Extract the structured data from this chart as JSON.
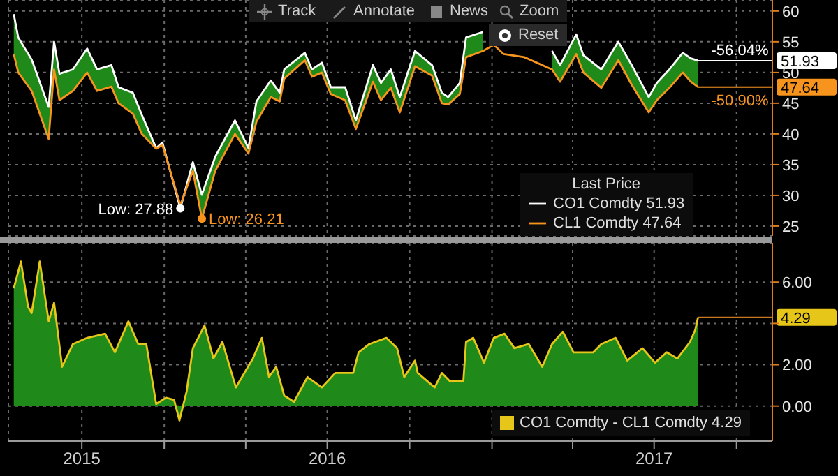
{
  "chart_data": [
    {
      "type": "line",
      "legend_title": "Last Price",
      "legend": "bottom right",
      "grid": true,
      "tick_labels": "y",
      "x": [
        "2015-07-17",
        "2015-07-22",
        "2015-08-06",
        "2015-08-25",
        "2015-08-31",
        "2015-09-06",
        "2015-09-21",
        "2015-10-07",
        "2015-10-18",
        "2015-11-03",
        "2015-11-11",
        "2015-11-27",
        "2015-12-07",
        "2015-12-23",
        "2015-12-30",
        "2016-01-19",
        "2016-02-02",
        "2016-02-12",
        "2016-02-27",
        "2016-03-20",
        "2016-04-04",
        "2016-04-13",
        "2016-04-29",
        "2016-05-09",
        "2016-05-14",
        "2016-06-06",
        "2016-06-14",
        "2016-06-25",
        "2016-07-05",
        "2016-07-21",
        "2016-08-02",
        "2016-08-21",
        "2016-08-30",
        "2016-09-10",
        "2016-09-20",
        "2016-10-07",
        "2016-10-26",
        "2016-11-06",
        "2016-11-13",
        "2016-11-26",
        "2016-12-03",
        "2016-12-22",
        "2017-01-03",
        "2017-01-14",
        "2017-02-06",
        "2017-03-09",
        "2017-03-18",
        "2017-04-05",
        "2017-04-13",
        "2017-05-03",
        "2017-05-22",
        "2017-06-06",
        "2017-06-25",
        "2017-07-04",
        "2017-07-18",
        "2017-08-02",
        "2017-08-11",
        "2017-08-19"
      ],
      "series": [
        {
          "name": "CO1 Comdty 51.93",
          "color": "#ffffff",
          "values": [
            59.5,
            55.7,
            52.1,
            44.4,
            55.0,
            49.8,
            50.5,
            53.9,
            50.5,
            51.2,
            47.6,
            46.7,
            43.1,
            37.7,
            38.6,
            27.88,
            35.4,
            30.1,
            36.3,
            42.2,
            37.7,
            45.3,
            48.7,
            46.7,
            50.5,
            53.2,
            50.5,
            51.6,
            47.6,
            47.6,
            42.2,
            51.2,
            48.3,
            50.5,
            46.0,
            53.5,
            51.2,
            46.7,
            46.0,
            48.3,
            55.7,
            56.6,
            null,
            null,
            null,
            53.5,
            51.2,
            56.2,
            52.8,
            50.5,
            55.0,
            51.2,
            46.0,
            48.3,
            50.5,
            53.2,
            52.3,
            51.93
          ],
          "lower": [
            53.0,
            50.0,
            47.0,
            39.2,
            50.5,
            45.5,
            47.0,
            50.0,
            47.0,
            47.7,
            45.0,
            43.3,
            40.0,
            37.6,
            38.2,
            28.4,
            34.0,
            26.21,
            34.0,
            40.0,
            36.8,
            42.0,
            46.0,
            45.3,
            49.0,
            52.0,
            49.3,
            50.0,
            46.5,
            45.5,
            40.8,
            48.5,
            45.5,
            47.5,
            43.5,
            51.0,
            49.5,
            45.0,
            44.8,
            46.5,
            52.5,
            53.5,
            null,
            null,
            null,
            50.5,
            48.5,
            53.0,
            50.0,
            47.5,
            52.0,
            48.0,
            43.5,
            45.5,
            47.5,
            50.0,
            48.5,
            47.64
          ],
          "upper": [
            59.5,
            55.7,
            52.1,
            44.4,
            55.0,
            49.8,
            50.5,
            53.9,
            50.5,
            51.2,
            47.6,
            46.7,
            43.1,
            37.7,
            38.6,
            27.88,
            35.4,
            30.1,
            36.3,
            42.2,
            37.7,
            45.3,
            48.7,
            46.7,
            50.5,
            53.2,
            50.5,
            51.6,
            47.6,
            47.6,
            42.2,
            51.2,
            48.3,
            50.5,
            46.0,
            53.5,
            51.2,
            46.7,
            46.0,
            48.3,
            55.7,
            56.6,
            null,
            null,
            null,
            53.5,
            51.2,
            56.2,
            52.8,
            50.5,
            55.0,
            51.2,
            46.0,
            48.3,
            50.5,
            53.2,
            52.3,
            51.93
          ],
          "line_style": "solid"
        },
        {
          "name": "CL1 Comdty 47.64",
          "color": "#f7941d",
          "values": [
            53.0,
            50.0,
            47.0,
            39.2,
            50.5,
            45.5,
            47.0,
            50.0,
            47.0,
            47.7,
            45.0,
            43.3,
            40.0,
            37.6,
            38.2,
            28.4,
            34.0,
            26.21,
            34.0,
            40.0,
            36.8,
            42.0,
            46.0,
            45.3,
            49.0,
            52.0,
            49.3,
            50.0,
            46.5,
            45.5,
            40.8,
            48.5,
            45.5,
            47.5,
            43.5,
            51.0,
            49.5,
            45.0,
            44.8,
            46.5,
            52.5,
            53.5,
            54.5,
            53.0,
            52.5,
            50.5,
            48.5,
            53.0,
            50.0,
            47.5,
            52.0,
            48.0,
            43.5,
            45.5,
            47.5,
            50.0,
            48.5,
            47.64
          ]
        }
      ],
      "xlim": [
        "2015-07-11",
        "2017-11-10"
      ],
      "xticks": [
        {
          "value": "2015-10-01",
          "label": null
        },
        {
          "value": "2016-01-01",
          "label": null
        },
        {
          "value": "2016-04-01",
          "label": null
        },
        {
          "value": "2016-07-01",
          "label": null
        },
        {
          "value": "2016-10-01",
          "label": null
        },
        {
          "value": "2017-01-01",
          "label": null
        },
        {
          "value": "2017-04-01",
          "label": null
        },
        {
          "value": "2017-07-01",
          "label": null
        },
        {
          "value": "2017-10-01",
          "label": null
        }
      ],
      "ylim": [
        23.4,
        61.8
      ],
      "yticks": [
        25,
        30,
        35,
        40,
        45,
        50,
        55,
        60
      ],
      "ref_lines": [
        {
          "axis": "y",
          "value": 51.93,
          "label": "51.93",
          "color": "#ffffff"
        },
        {
          "axis": "y",
          "value": 47.64,
          "label": "47.64",
          "color": "#f7941d"
        }
      ],
      "annotations": [
        "Track",
        "Annotate",
        "News",
        "Zoom",
        "Reset",
        {
          "text": "Low: 27.88",
          "x": "2016-01-19",
          "y": 27.88
        },
        {
          "text": "Low: 26.21",
          "x": "2016-02-12",
          "y": 26.21
        },
        {
          "text": "-56.04%",
          "x": "2017-10-11",
          "y": 51.93
        },
        {
          "text": "-50.90%",
          "x": "2017-10-11",
          "y": 47.64
        }
      ]
    },
    {
      "type": "area",
      "legend": "bottom right",
      "grid": true,
      "x": [
        "2015-07-17",
        "2015-07-25",
        "2015-08-02",
        "2015-08-06",
        "2015-08-15",
        "2015-08-25",
        "2015-08-31",
        "2015-09-09",
        "2015-09-21",
        "2015-10-07",
        "2015-10-27",
        "2015-11-07",
        "2015-11-22",
        "2015-12-03",
        "2015-12-12",
        "2015-12-23",
        "2016-01-03",
        "2016-01-12",
        "2016-01-18",
        "2016-01-26",
        "2016-02-02",
        "2016-02-15",
        "2016-02-25",
        "2016-03-06",
        "2016-03-21",
        "2016-04-09",
        "2016-04-19",
        "2016-04-27",
        "2016-05-05",
        "2016-05-14",
        "2016-05-25",
        "2016-06-09",
        "2016-06-25",
        "2016-07-10",
        "2016-07-30",
        "2016-08-05",
        "2016-08-17",
        "2016-09-05",
        "2016-09-17",
        "2016-09-25",
        "2016-10-07",
        "2016-10-10",
        "2016-10-29",
        "2016-11-06",
        "2016-11-15",
        "2016-11-30",
        "2016-12-03",
        "2016-12-11",
        "2016-12-23",
        "2017-01-03",
        "2017-01-15",
        "2017-01-26",
        "2017-02-11",
        "2017-02-26",
        "2017-03-09",
        "2017-03-21",
        "2017-04-02",
        "2017-04-24",
        "2017-05-03",
        "2017-05-19",
        "2017-06-01",
        "2017-06-18",
        "2017-07-02",
        "2017-07-15",
        "2017-07-27",
        "2017-08-10",
        "2017-08-16",
        "2017-08-19"
      ],
      "series": [
        {
          "name": "CO1 Comdty - CL1 Comdty 4.29",
          "color": "#e6c619",
          "values": [
            5.7,
            7.0,
            4.8,
            4.5,
            7.0,
            4.1,
            5.0,
            1.9,
            3.0,
            3.3,
            3.5,
            2.6,
            4.1,
            3.0,
            3.0,
            0.1,
            0.4,
            0.3,
            -0.7,
            0.7,
            2.8,
            3.9,
            2.3,
            3.1,
            0.9,
            2.3,
            3.3,
            1.4,
            1.9,
            0.5,
            0.2,
            1.4,
            0.9,
            1.6,
            1.6,
            2.6,
            3.0,
            3.3,
            2.8,
            1.4,
            2.2,
            1.6,
            0.9,
            1.6,
            1.2,
            1.2,
            3.1,
            3.3,
            2.1,
            3.3,
            3.5,
            2.8,
            3.0,
            1.9,
            3.0,
            3.6,
            2.6,
            2.6,
            3.0,
            3.3,
            2.2,
            2.8,
            2.1,
            2.6,
            2.3,
            3.1,
            3.7,
            4.29
          ]
        }
      ],
      "xlim": [
        "2015-07-11",
        "2017-11-10"
      ],
      "xticks": [
        {
          "value": "2015-10-01",
          "label": "2015"
        },
        {
          "value": "2016-01-01",
          "label": null
        },
        {
          "value": "2016-04-01",
          "label": null
        },
        {
          "value": "2016-07-01",
          "label": "2016"
        },
        {
          "value": "2016-10-01",
          "label": null
        },
        {
          "value": "2017-01-01",
          "label": null
        },
        {
          "value": "2017-04-01",
          "label": null
        },
        {
          "value": "2017-07-01",
          "label": "2017"
        },
        {
          "value": "2017-10-01",
          "label": null
        }
      ],
      "ylim": [
        -1.7,
        7.9
      ],
      "yticks": [
        {
          "value": 0,
          "label": "0.00"
        },
        {
          "value": 2,
          "label": "2.00"
        },
        {
          "value": 4,
          "label": null
        },
        {
          "value": 6,
          "label": "6.00"
        }
      ],
      "ref_lines": [
        {
          "axis": "y",
          "value": 4.29,
          "label": "4.29",
          "color": "#c8781e"
        }
      ]
    }
  ]
}
